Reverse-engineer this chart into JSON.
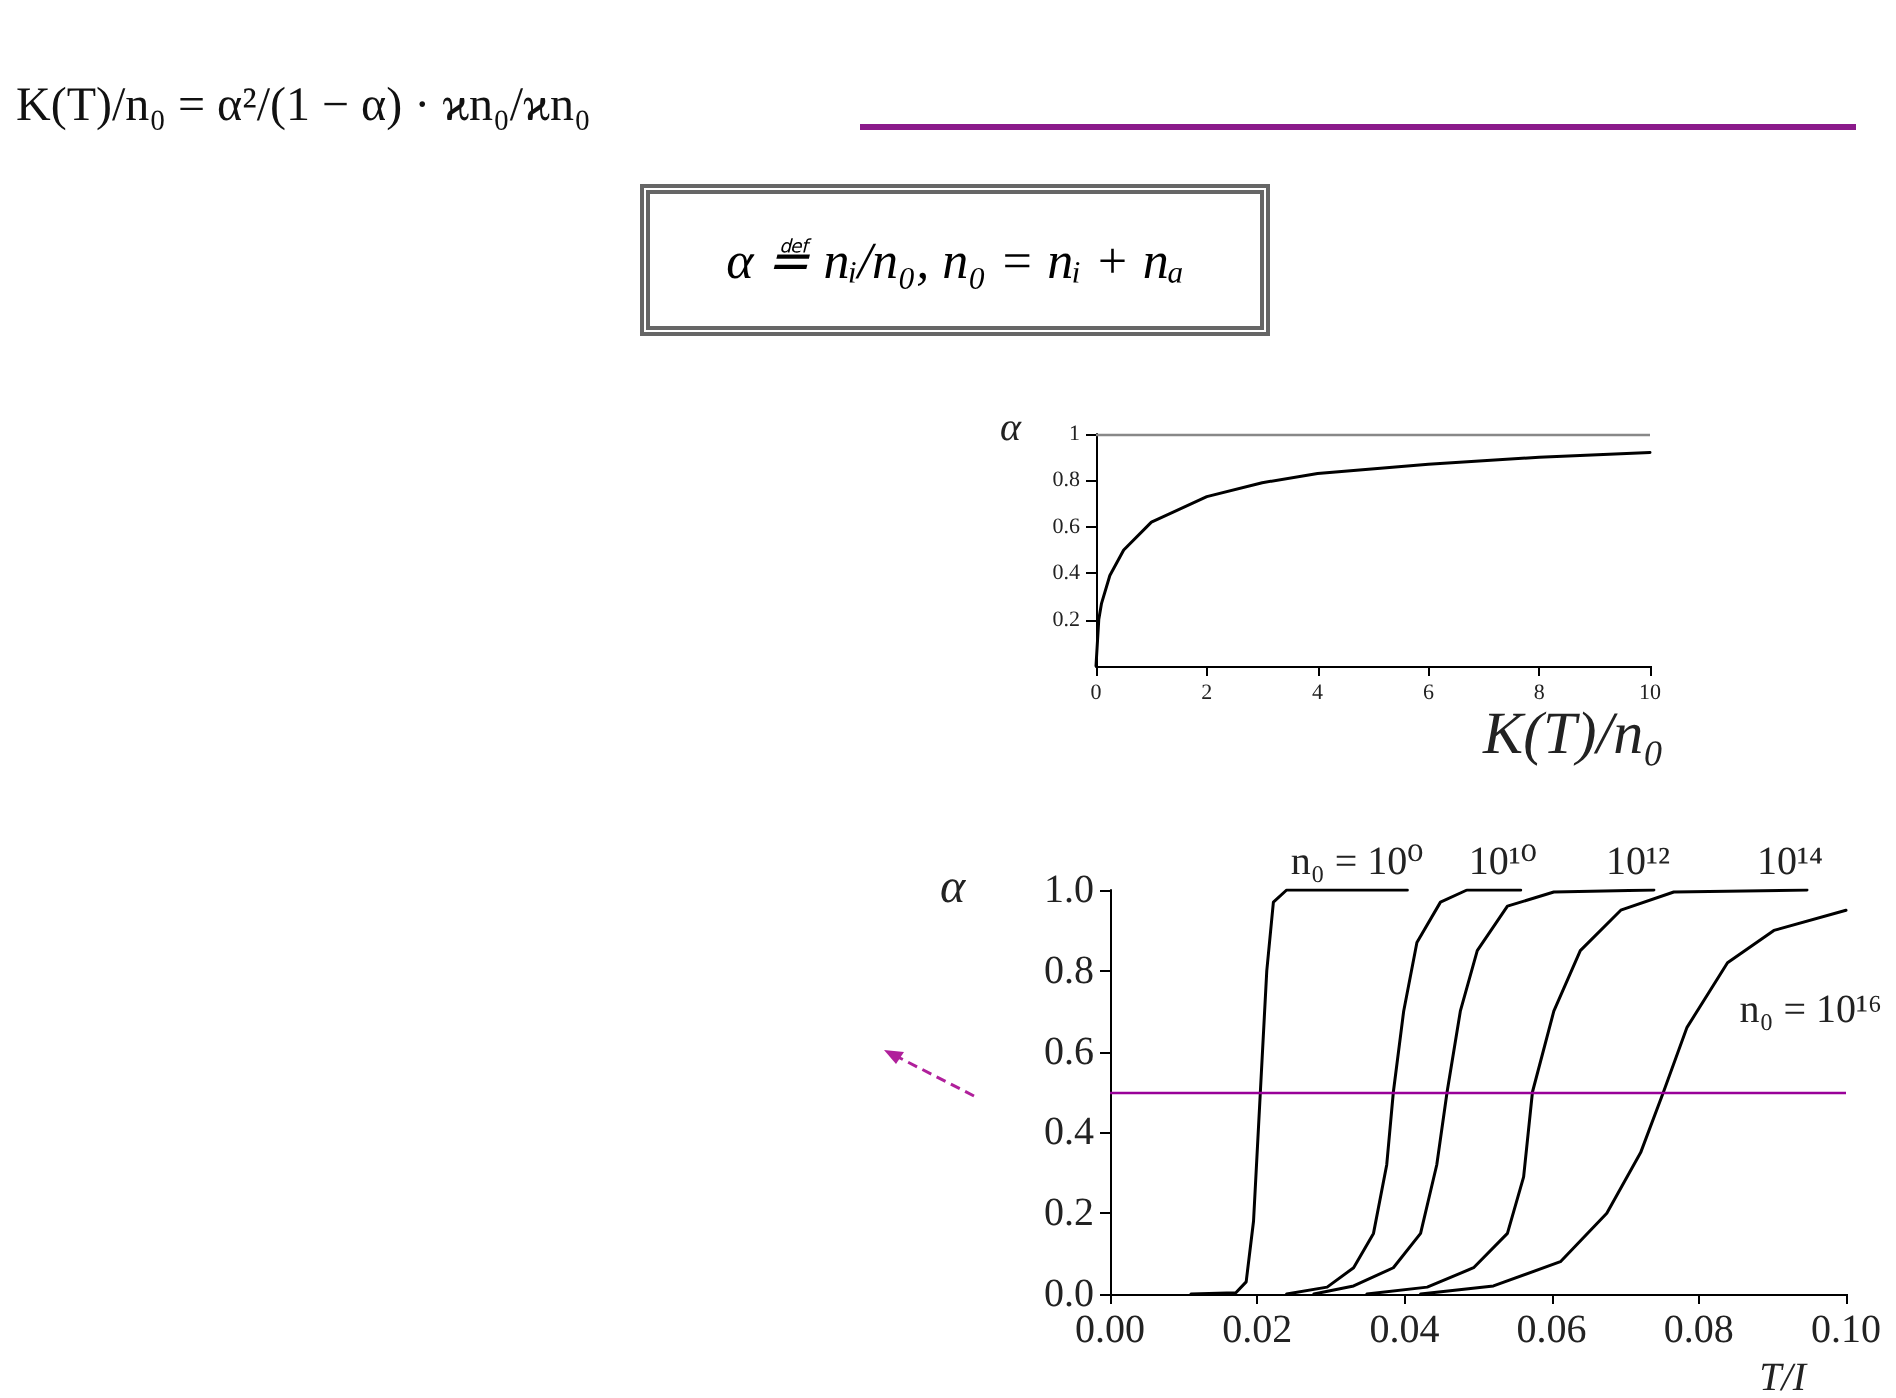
{
  "chart_data": [
    {
      "type": "line",
      "xlabel": "K(T)/n₀",
      "ylabel": "α",
      "xlim": [
        0,
        10
      ],
      "ylim": [
        0,
        1
      ],
      "xticks": [
        0,
        2,
        4,
        6,
        8,
        10
      ],
      "yticks": [
        0.2,
        0.4,
        0.6,
        0.8,
        1
      ],
      "annotations": [
        "K(T)/n₀ = α²/(1 − α) · ϰn₀/ϰn₀",
        "α ≝ nᵢ/n₀,    n₀ = nᵢ + nₐ"
      ],
      "ref_lines": [
        {
          "axis": "y",
          "value": 1,
          "color": "#888888"
        }
      ],
      "series": [
        {
          "color": "#000000",
          "x": [
            0,
            0.05,
            0.1,
            0.25,
            0.5,
            1,
            2,
            3,
            4,
            6,
            8,
            10
          ],
          "values": [
            0,
            0.2,
            0.27,
            0.39,
            0.5,
            0.62,
            0.73,
            0.79,
            0.83,
            0.87,
            0.9,
            0.92
          ]
        }
      ]
    },
    {
      "type": "line",
      "xlabel": "T/I",
      "ylabel": "α",
      "xlim": [
        0,
        0.1
      ],
      "ylim": [
        0,
        1
      ],
      "xticks": [
        {
          "value": 0,
          "label": "0.00"
        },
        {
          "value": 0.02,
          "label": "0.02"
        },
        {
          "value": 0.04,
          "label": "0.04"
        },
        {
          "value": 0.06,
          "label": "0.06"
        },
        {
          "value": 0.08,
          "label": "0.08"
        },
        {
          "value": 0.1,
          "label": "0.10"
        }
      ],
      "yticks": [
        {
          "value": 0,
          "label": "0.0"
        },
        {
          "value": 0.2,
          "label": "0.2"
        },
        {
          "value": 0.4,
          "label": "0.4"
        },
        {
          "value": 0.6,
          "label": "0.6"
        },
        {
          "value": 0.8,
          "label": "0.8"
        },
        {
          "value": 1,
          "label": "1.0"
        }
      ],
      "ref_lines": [
        {
          "axis": "y",
          "value": 0.5,
          "color": "#990099"
        }
      ],
      "series": [
        {
          "name": "n₀ = 10⁰",
          "color": "#000000",
          "x": [
            0.011,
            0.0171,
            0.0185,
            0.0195,
            0.0204,
            0.0213,
            0.0222,
            0.024,
            0.0404
          ],
          "values": [
            0,
            0.003,
            0.03,
            0.18,
            0.49,
            0.8,
            0.97,
            1,
            1
          ]
        },
        {
          "name": "10¹⁰",
          "color": "#000000",
          "x": [
            0.024,
            0.0295,
            0.0331,
            0.0358,
            0.0376,
            0.0385,
            0.0399,
            0.0417,
            0.0449,
            0.0485,
            0.0558
          ],
          "values": [
            0,
            0.017,
            0.065,
            0.15,
            0.32,
            0.5,
            0.7,
            0.87,
            0.97,
            1,
            1
          ]
        },
        {
          "name": "10¹²",
          "color": "#000000",
          "x": [
            0.0277,
            0.0331,
            0.0385,
            0.0422,
            0.0444,
            0.0458,
            0.0476,
            0.0499,
            0.054,
            0.0603,
            0.0739
          ],
          "values": [
            0,
            0.02,
            0.065,
            0.15,
            0.32,
            0.5,
            0.7,
            0.85,
            0.96,
            0.995,
            1
          ]
        },
        {
          "name": "10¹⁴",
          "color": "#000000",
          "x": [
            0.0349,
            0.0431,
            0.0494,
            0.054,
            0.0562,
            0.0574,
            0.0603,
            0.0639,
            0.0694,
            0.0766,
            0.0947
          ],
          "values": [
            0,
            0.017,
            0.065,
            0.15,
            0.29,
            0.5,
            0.7,
            0.85,
            0.95,
            0.995,
            1
          ]
        },
        {
          "name": "n₀ = 10¹⁶",
          "color": "#000000",
          "x": [
            0.0422,
            0.0521,
            0.0612,
            0.0675,
            0.0721,
            0.0752,
            0.0784,
            0.0839,
            0.0902,
            0.1
          ],
          "values": [
            0,
            0.02,
            0.08,
            0.2,
            0.35,
            0.5,
            0.66,
            0.82,
            0.9,
            0.95
          ]
        }
      ]
    }
  ]
}
